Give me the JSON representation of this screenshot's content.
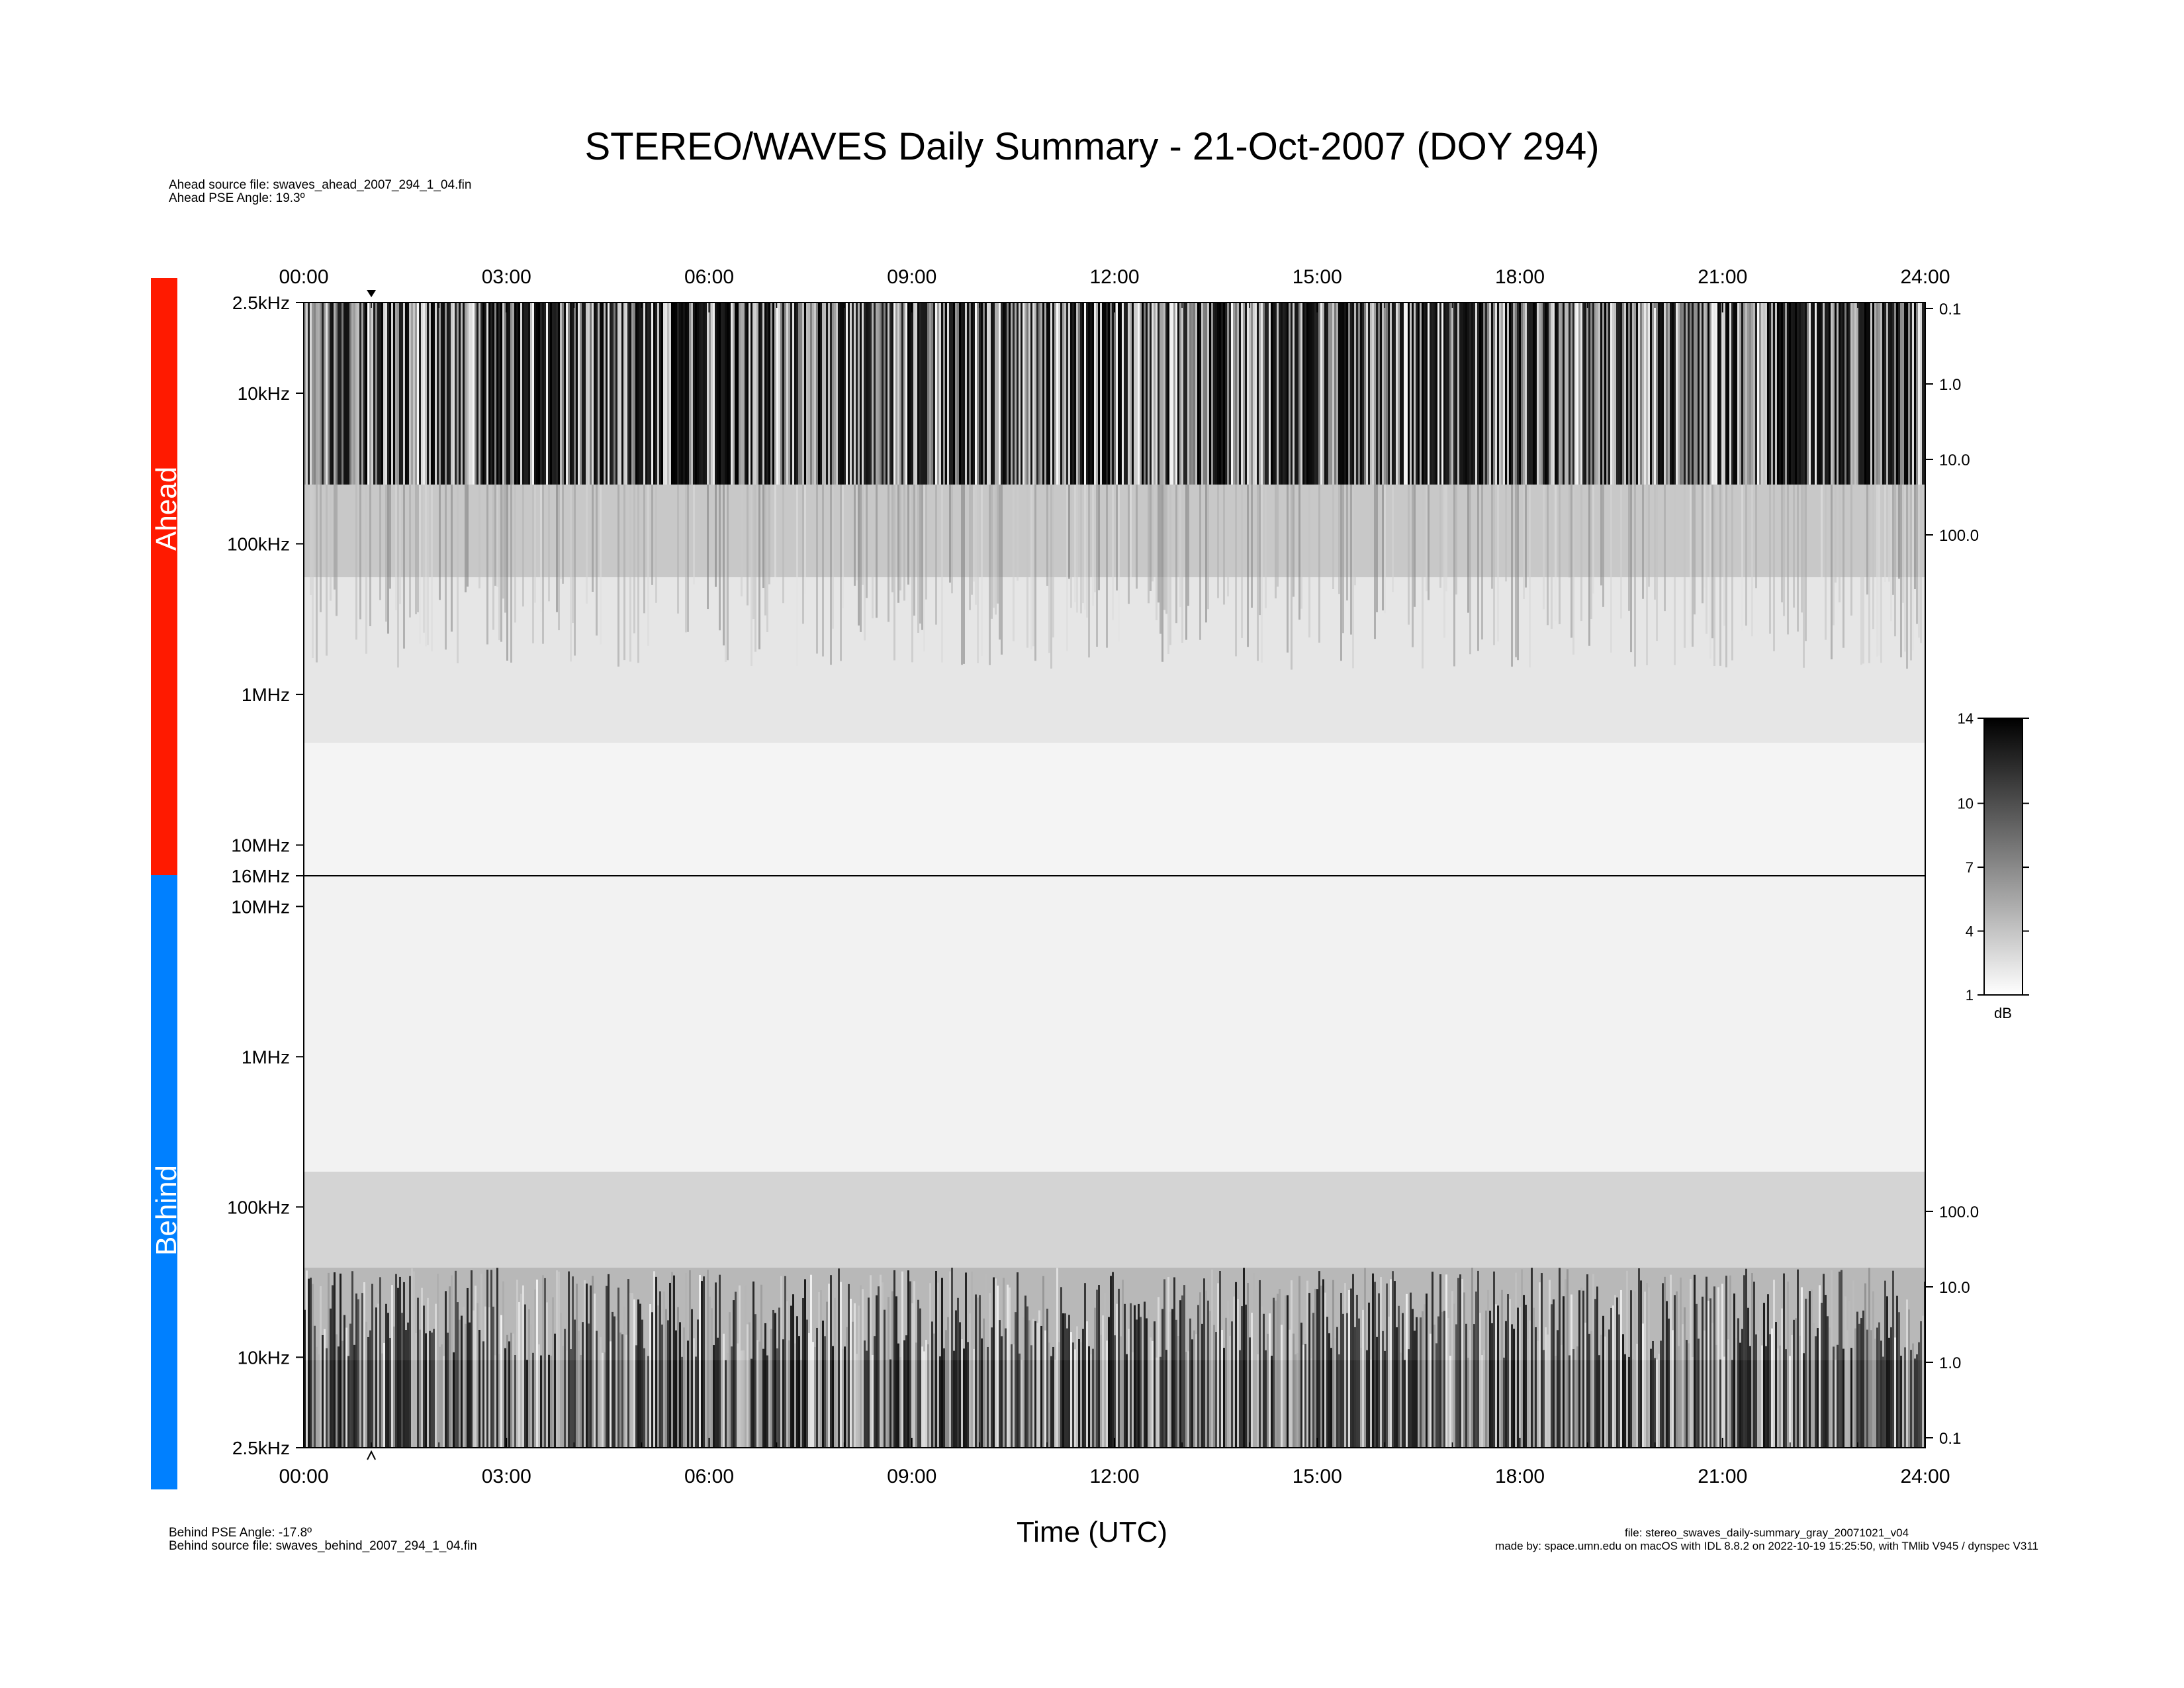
{
  "title": "STEREO/WAVES Daily Summary - 21-Oct-2007 (DOY 294)",
  "header_meta": {
    "ahead_source_file": "Ahead source file: swaves_ahead_2007_294_1_04.fin",
    "ahead_pse_angle": "Ahead PSE Angle:   19.3º"
  },
  "footer_meta": {
    "behind_pse_angle": "Behind PSE Angle:  -17.8º",
    "behind_source_file": "Behind source file: swaves_behind_2007_294_1_04.fin",
    "output_file": "file: stereo_swaves_daily-summary_gray_20071021_v04",
    "made_by": "made by: space.umn.edu on macOS with IDL 8.8.2 on 2022-10-19 15:25:50, with TMlib V945 / dynspec V311"
  },
  "spacecraft": [
    {
      "label": "Ahead",
      "color": "#ff1a00"
    },
    {
      "label": "Behind",
      "color": "#0080ff"
    }
  ],
  "colorbar": {
    "unit": "dB",
    "ticks": [
      "14",
      "10",
      "7",
      "4",
      "1"
    ],
    "range": [
      1,
      14
    ]
  },
  "chart_data": {
    "type": "heatmap",
    "xlabel": "Time (UTC)",
    "x_ticks": [
      "00:00",
      "03:00",
      "06:00",
      "09:00",
      "12:00",
      "15:00",
      "18:00",
      "21:00",
      "24:00"
    ],
    "x_range_hours": [
      0,
      24
    ],
    "marker_time": "01:00",
    "panels": [
      {
        "name": "Ahead",
        "freq_ticks": [
          "2.5kHz",
          "10kHz",
          "100kHz",
          "1MHz",
          "10MHz"
        ],
        "freq_range": [
          "2.5kHz",
          "16MHz"
        ],
        "right_axis_ticks": [
          "0.1",
          "1.0",
          "10.0",
          "100.0"
        ],
        "log_scale": true
      },
      {
        "name": "Behind",
        "freq_ticks": [
          "16MHz",
          "10MHz",
          "1MHz",
          "100kHz",
          "10kHz",
          "2.5kHz"
        ],
        "freq_range": [
          "16MHz",
          "2.5kHz"
        ],
        "right_axis_ticks": [
          "100.0",
          "10.0",
          "1.0",
          "0.1"
        ],
        "log_scale": true
      }
    ],
    "colorscale": "gray",
    "intensity_unit": "dB",
    "intensity_range": [
      1,
      14
    ]
  }
}
